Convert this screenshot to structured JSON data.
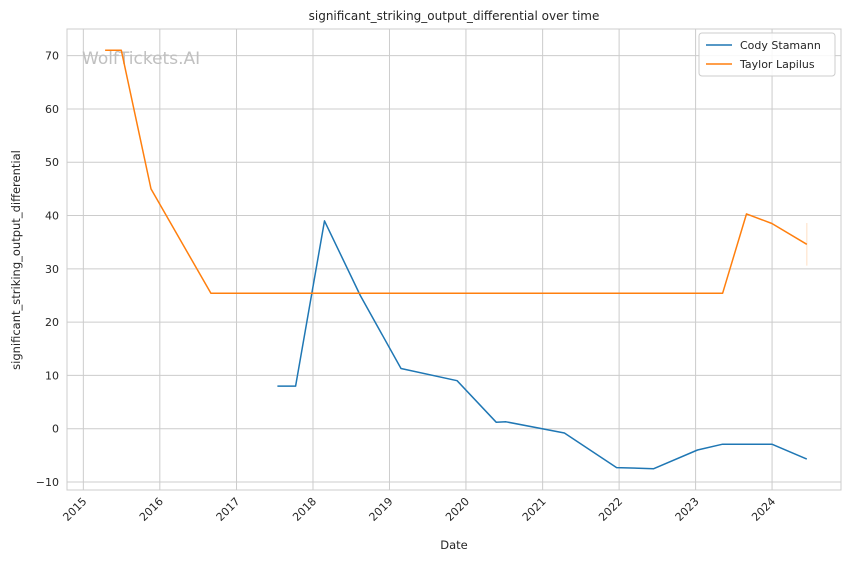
{
  "chart_data": {
    "type": "line",
    "title": "significant_striking_output_differential over time",
    "xlabel": "Date",
    "ylabel": "significant_striking_output_differential",
    "watermark": "WolfTickets.AI",
    "x_ticks": [
      "2015",
      "2016",
      "2017",
      "2018",
      "2019",
      "2020",
      "2021",
      "2022",
      "2023",
      "2024"
    ],
    "y_ticks": [
      -10,
      0,
      10,
      20,
      30,
      40,
      50,
      60,
      70
    ],
    "xlim": [
      "2014-10-15",
      "2024-11-25"
    ],
    "ylim": [
      -11.5,
      75
    ],
    "grid": true,
    "legend_position": "top-right",
    "series": [
      {
        "name": "Cody Stamann",
        "color": "#1f77b4",
        "points": [
          [
            "2017-07-15",
            8.0
          ],
          [
            "2017-10-10",
            8.0
          ],
          [
            "2018-02-25",
            39.0
          ],
          [
            "2018-08-15",
            25.0
          ],
          [
            "2019-02-25",
            11.3
          ],
          [
            "2019-11-20",
            9.0
          ],
          [
            "2020-05-25",
            1.2
          ],
          [
            "2020-07-10",
            1.3
          ],
          [
            "2021-04-15",
            -0.8
          ],
          [
            "2021-12-20",
            -7.3
          ],
          [
            "2022-06-15",
            -7.5
          ],
          [
            "2023-01-10",
            -4.0
          ],
          [
            "2023-05-10",
            -2.9
          ],
          [
            "2023-12-31",
            -2.9
          ],
          [
            "2024-06-15",
            -5.7
          ]
        ]
      },
      {
        "name": "Taylor Lapilus",
        "color": "#ff7f0e",
        "points": [
          [
            "2015-04-15",
            71.0
          ],
          [
            "2015-07-01",
            71.0
          ],
          [
            "2015-11-20",
            45.0
          ],
          [
            "2016-09-01",
            25.4
          ],
          [
            "2023-05-10",
            25.4
          ],
          [
            "2023-09-01",
            40.3
          ],
          [
            "2023-12-31",
            38.5
          ],
          [
            "2024-06-15",
            34.6
          ]
        ]
      }
    ]
  }
}
